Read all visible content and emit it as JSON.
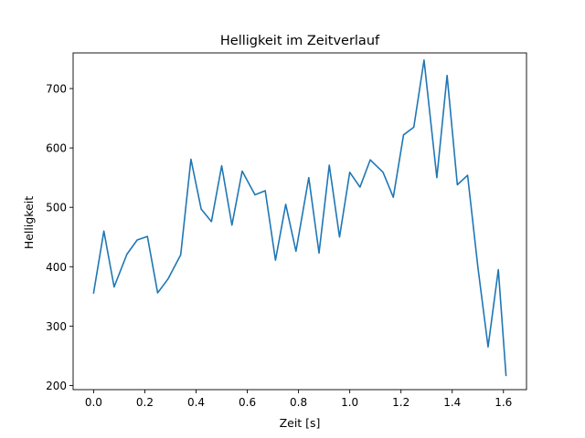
{
  "chart_data": {
    "type": "line",
    "title": "Helligkeit im Zeitverlauf",
    "xlabel": "Zeit [s]",
    "ylabel": "Helligkeit",
    "xlim": [
      -0.08,
      1.69
    ],
    "ylim": [
      193,
      760
    ],
    "x_ticks": [
      0.0,
      0.2,
      0.4,
      0.6,
      0.8,
      1.0,
      1.2,
      1.4,
      1.6
    ],
    "x_tick_labels": [
      "0.0",
      "0.2",
      "0.4",
      "0.6",
      "0.8",
      "1.0",
      "1.2",
      "1.4",
      "1.6"
    ],
    "y_ticks": [
      200,
      300,
      400,
      500,
      600,
      700
    ],
    "y_tick_labels": [
      "200",
      "300",
      "400",
      "500",
      "600",
      "700"
    ],
    "grid": false,
    "colors": {
      "line": "#1f77b4"
    },
    "series": [
      {
        "x": [
          0.0,
          0.04,
          0.08,
          0.13,
          0.17,
          0.21,
          0.25,
          0.29,
          0.34,
          0.38,
          0.42,
          0.46,
          0.5,
          0.54,
          0.58,
          0.63,
          0.67,
          0.71,
          0.75,
          0.79,
          0.84,
          0.88,
          0.92,
          0.96,
          1.0,
          1.04,
          1.08,
          1.13,
          1.17,
          1.21,
          1.25,
          1.29,
          1.34,
          1.38,
          1.42,
          1.46,
          1.5,
          1.54,
          1.58,
          1.61
        ],
        "y": [
          356,
          460,
          366,
          421,
          445,
          451,
          356,
          379,
          420,
          581,
          497,
          476,
          570,
          470,
          561,
          521,
          528,
          411,
          505,
          426,
          550,
          423,
          571,
          450,
          559,
          534,
          580,
          559,
          517,
          622,
          635,
          748,
          550,
          722,
          538,
          554,
          400,
          265,
          395,
          217
        ]
      }
    ]
  }
}
